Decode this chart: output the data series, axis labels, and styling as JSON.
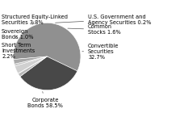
{
  "slices": [
    {
      "label": "Corporate\nBonds 58.5%",
      "value": 58.5,
      "color": "#909090"
    },
    {
      "label": "Convertible\nSecurities\n32.7%",
      "value": 32.7,
      "color": "#484848"
    },
    {
      "label": "Common\nStocks 1.6%",
      "value": 1.6,
      "color": "#b8b8b8"
    },
    {
      "label": "U.S. Government and\nAgency Securities 0.2%",
      "value": 0.2,
      "color": "#1a1a1a"
    },
    {
      "label": "Structured Equity-Linked\nSecurities 3.8%",
      "value": 3.8,
      "color": "#d0d0d0"
    },
    {
      "label": "Sovereign\nBonds 1.0%",
      "value": 1.0,
      "color": "#c4c4c4"
    },
    {
      "label": "Short Term\nInvestments\n2.2%",
      "value": 2.2,
      "color": "#a8a8a8"
    }
  ],
  "startangle": 185,
  "background_color": "#ffffff",
  "text_color": "#000000",
  "font_size": 4.8
}
